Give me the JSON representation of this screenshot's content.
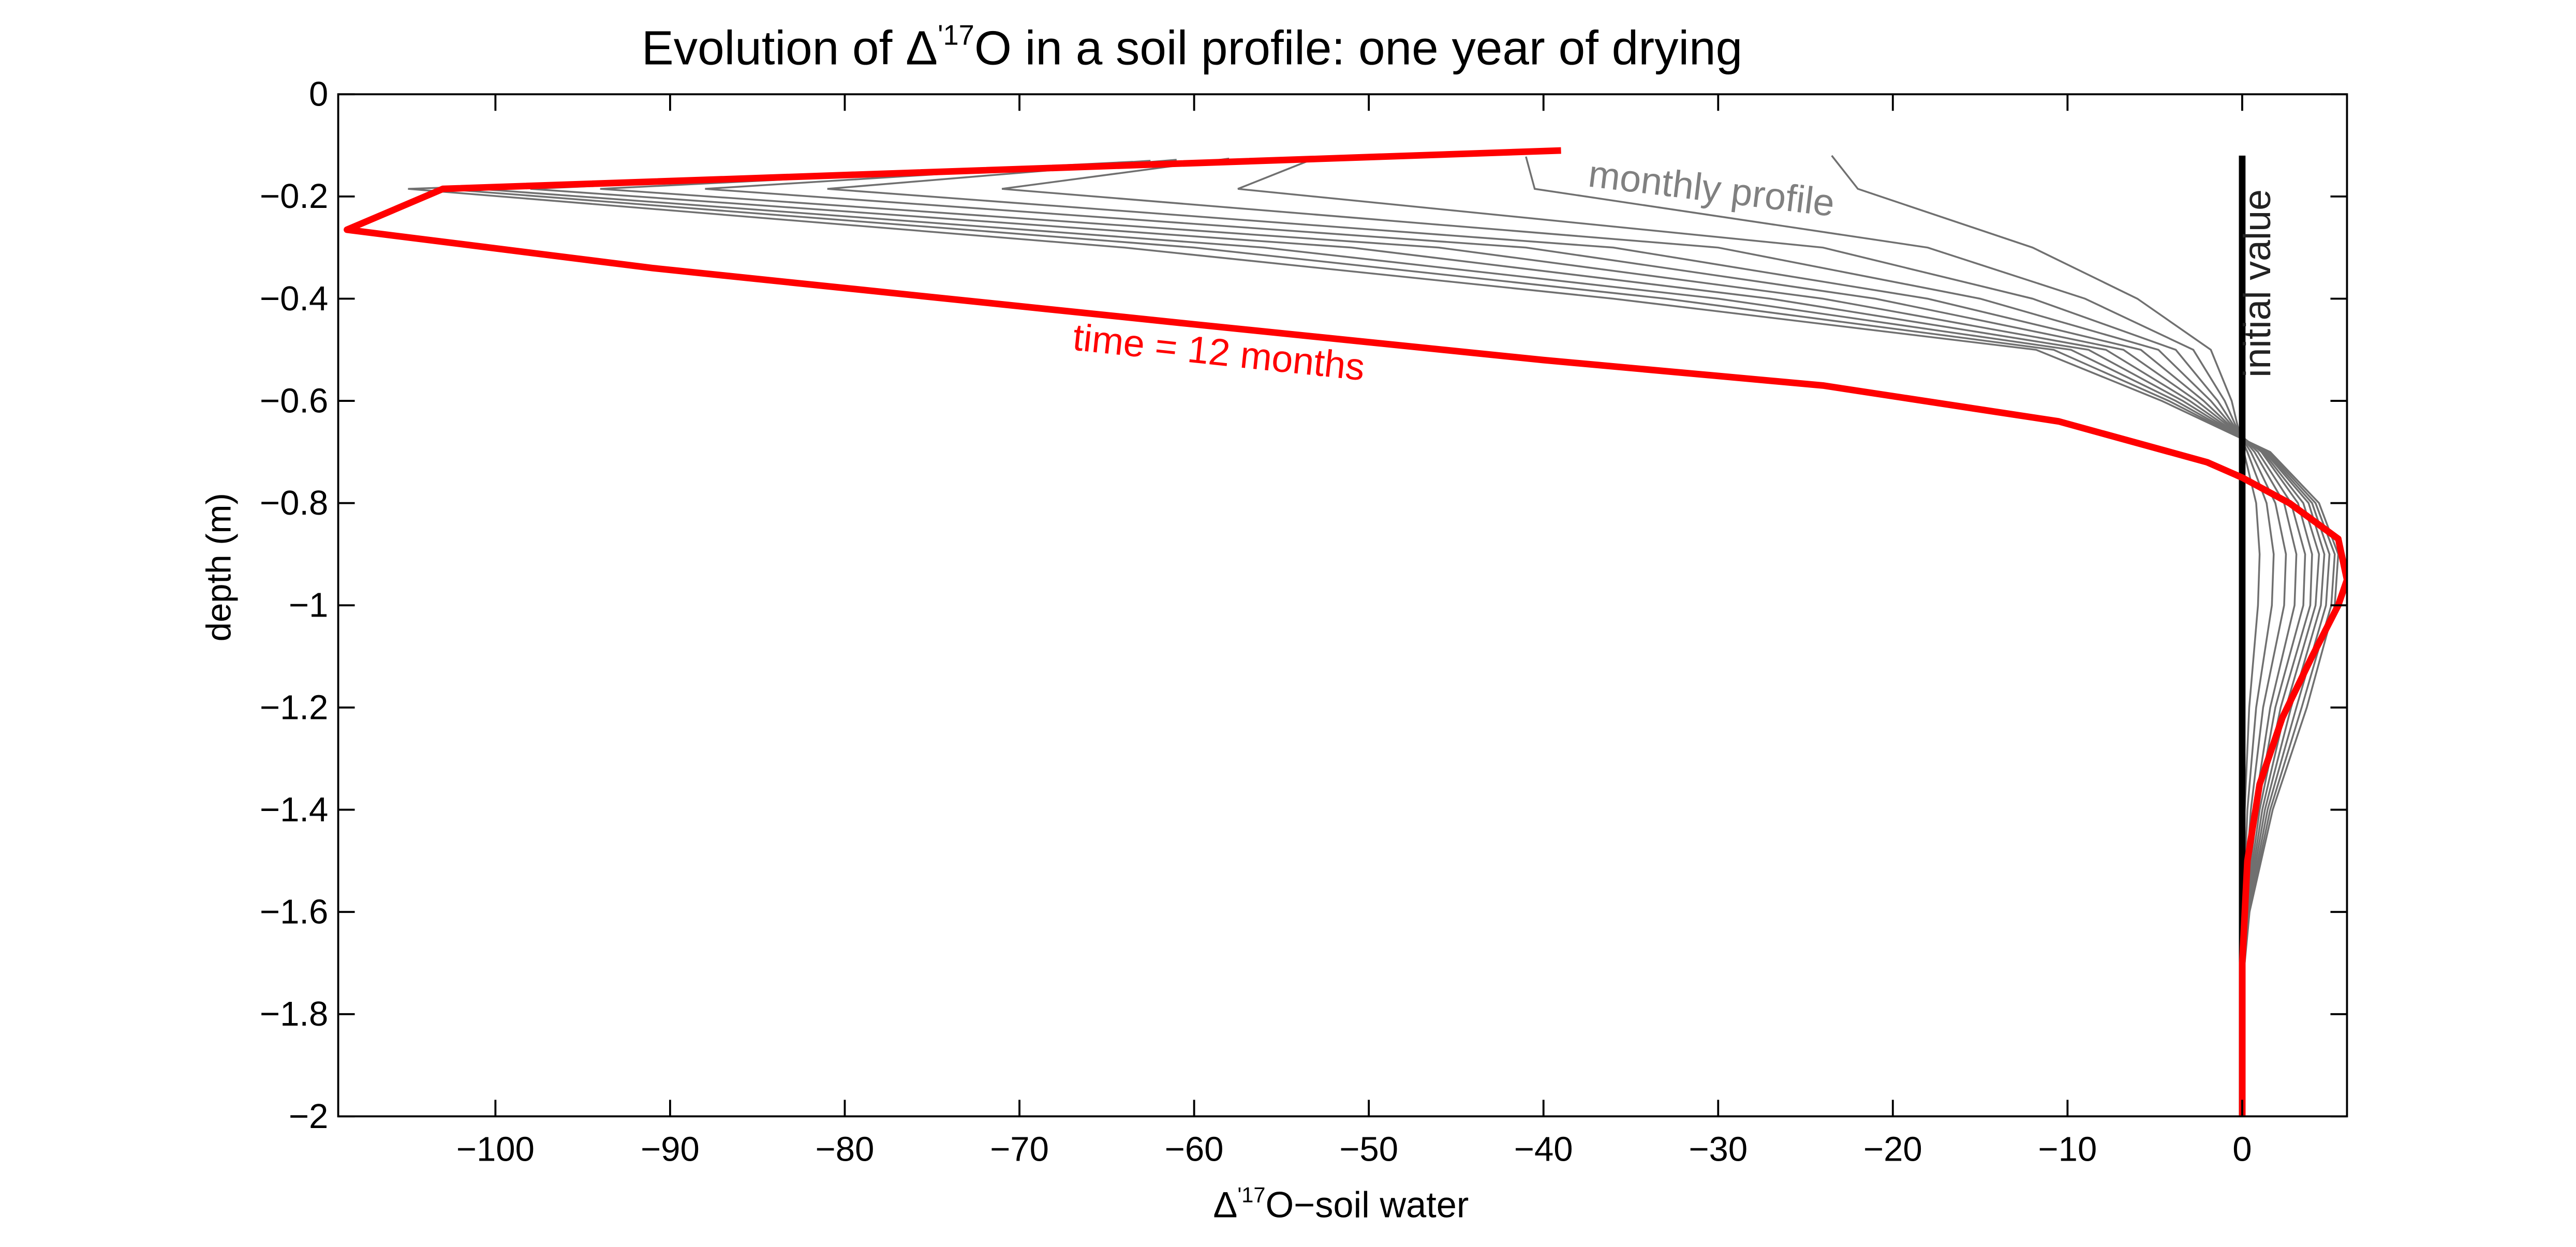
{
  "chart_data": {
    "type": "line",
    "title_parts": {
      "before": "Evolution of Δ",
      "sup": "'17",
      "after": "O in a soil profile: one year of drying"
    },
    "xlabel_parts": {
      "before": "Δ",
      "sup": "'17",
      "after": "O−soil water"
    },
    "ylabel": "depth (m)",
    "xlim": [
      -109,
      6
    ],
    "ylim": [
      -2,
      0
    ],
    "xticks": [
      -100,
      -90,
      -80,
      -70,
      -60,
      -50,
      -40,
      -30,
      -20,
      -10,
      0
    ],
    "xtick_labels": [
      "−100",
      "−90",
      "−80",
      "−70",
      "−60",
      "−50",
      "−40",
      "−30",
      "−20",
      "−10",
      "0"
    ],
    "yticks": [
      0,
      -0.2,
      -0.4,
      -0.6,
      -0.8,
      -1,
      -1.2,
      -1.4,
      -1.6,
      -1.8,
      -2
    ],
    "ytick_labels": [
      "0",
      "−0.2",
      "−0.4",
      "−0.6",
      "−0.8",
      "−1",
      "−1.2",
      "−1.4",
      "−1.6",
      "−1.8",
      "−2"
    ],
    "grid": false,
    "annotations": [
      {
        "text": "monthly profile",
        "x": -37.5,
        "y": -0.18,
        "rotation": 7,
        "color": "#808080"
      },
      {
        "text": "initial value",
        "x": 1.6,
        "y": -0.37,
        "rotation": -90,
        "color": "#222222"
      },
      {
        "text": "time = 12 months",
        "x": -67,
        "y": -0.5,
        "rotation": 6,
        "color": "#ff0000"
      }
    ],
    "initial_value": {
      "x": 0,
      "y": [
        -0.12,
        -2
      ],
      "color": "#000000"
    },
    "final_color": "#ff0000",
    "monthly_color": "#707070",
    "monthly_series": [
      [
        [
          -23.5,
          -0.12
        ],
        [
          -21.5,
          -0.18
        ],
        [
          -12,
          -0.27
        ],
        [
          -5.5,
          -0.34
        ],
        [
          -2,
          -0.42
        ],
        [
          -0.5,
          -0.5
        ],
        [
          0,
          -0.58
        ],
        [
          0,
          -0.7
        ],
        [
          0,
          -0.8
        ],
        [
          0,
          -0.9
        ],
        [
          0,
          -1
        ],
        [
          0,
          -1.2
        ],
        [
          0,
          -1.6
        ],
        [
          0,
          -2
        ]
      ]
    ],
    "monthly_profiles": [
      {
        "top": -23.5,
        "elbow": -22,
        "d03": -12,
        "d04": -6,
        "d05": -1.8,
        "d06": -0.6,
        "d07": 0.1,
        "d08": 0.8,
        "d09": 1.0,
        "d10": 0.9,
        "d12": 0.4,
        "d14": 0.15,
        "d16": 0.03
      },
      {
        "top": -41,
        "elbow": -40.5,
        "d03": -18,
        "d04": -9,
        "d05": -2.8,
        "d06": -1,
        "d07": 0.3,
        "d08": 1.4,
        "d09": 1.8,
        "d10": 1.7,
        "d12": 0.8,
        "d14": 0.3,
        "d16": 0.07
      },
      {
        "top": -53,
        "elbow": -57.5,
        "d03": -24,
        "d04": -12,
        "d05": -3.8,
        "d06": -1.4,
        "d07": 0.5,
        "d08": 1.9,
        "d09": 2.5,
        "d10": 2.4,
        "d12": 1.2,
        "d14": 0.5,
        "d16": 0.1
      },
      {
        "top": -58,
        "elbow": -71,
        "d03": -30,
        "d04": -15,
        "d05": -4.8,
        "d06": -1.8,
        "d07": 0.7,
        "d08": 2.4,
        "d09": 3.1,
        "d10": 3.0,
        "d12": 1.6,
        "d14": 0.7,
        "d16": 0.14
      },
      {
        "top": -61,
        "elbow": -81,
        "d03": -36,
        "d04": -18,
        "d05": -5.8,
        "d06": -2.2,
        "d07": 0.9,
        "d08": 2.8,
        "d09": 3.6,
        "d10": 3.5,
        "d12": 1.9,
        "d14": 0.85,
        "d16": 0.18
      },
      {
        "top": -62.5,
        "elbow": -88,
        "d03": -41,
        "d04": -21,
        "d05": -6.8,
        "d06": -2.6,
        "d07": 1.1,
        "d08": 3.2,
        "d09": 4.0,
        "d10": 3.9,
        "d12": 2.2,
        "d14": 1.0,
        "d16": 0.22
      },
      {
        "top": -63.5,
        "elbow": -94,
        "d03": -46,
        "d04": -24,
        "d05": -7.8,
        "d06": -3.0,
        "d07": 1.2,
        "d08": 3.5,
        "d09": 4.4,
        "d10": 4.2,
        "d12": 2.5,
        "d14": 1.15,
        "d16": 0.26
      },
      {
        "top": -64,
        "elbow": -98,
        "d03": -51,
        "d04": -27,
        "d05": -8.8,
        "d06": -3.4,
        "d07": 1.3,
        "d08": 3.8,
        "d09": 4.7,
        "d10": 4.5,
        "d12": 2.8,
        "d14": 1.3,
        "d16": 0.3
      },
      {
        "top": -64.5,
        "elbow": -101,
        "d03": -56,
        "d04": -30,
        "d05": -9.8,
        "d06": -3.8,
        "d07": 1.4,
        "d08": 4.0,
        "d09": 5.0,
        "d10": 4.8,
        "d12": 3.1,
        "d14": 1.45,
        "d16": 0.34
      },
      {
        "top": -65,
        "elbow": -103,
        "d03": -60,
        "d04": -33,
        "d05": -10.8,
        "d06": -4.2,
        "d07": 1.5,
        "d08": 4.2,
        "d09": 5.3,
        "d10": 5.1,
        "d12": 3.4,
        "d14": 1.6,
        "d16": 0.38
      },
      {
        "top": -65.5,
        "elbow": -105,
        "d03": -64,
        "d04": -36,
        "d05": -11.8,
        "d06": -4.6,
        "d07": 1.6,
        "d08": 4.4,
        "d09": 5.5,
        "d10": 5.3,
        "d12": 3.7,
        "d14": 1.75,
        "d16": 0.42
      }
    ],
    "final_profile": [
      [
        -39,
        -0.11
      ],
      [
        -103,
        -0.185
      ],
      [
        -108.5,
        -0.265
      ],
      [
        -91,
        -0.34
      ],
      [
        -60,
        -0.45
      ],
      [
        -40,
        -0.52
      ],
      [
        -24,
        -0.57
      ],
      [
        -10.5,
        -0.64
      ],
      [
        -2,
        -0.72
      ],
      [
        0,
        -0.75
      ],
      [
        2.7,
        -0.8
      ],
      [
        5.5,
        -0.87
      ],
      [
        6,
        -0.95
      ],
      [
        5.5,
        -1.0
      ],
      [
        4,
        -1.1
      ],
      [
        2.3,
        -1.22
      ],
      [
        1,
        -1.35
      ],
      [
        0.3,
        -1.5
      ],
      [
        0,
        -1.7
      ],
      [
        0,
        -2
      ]
    ]
  }
}
